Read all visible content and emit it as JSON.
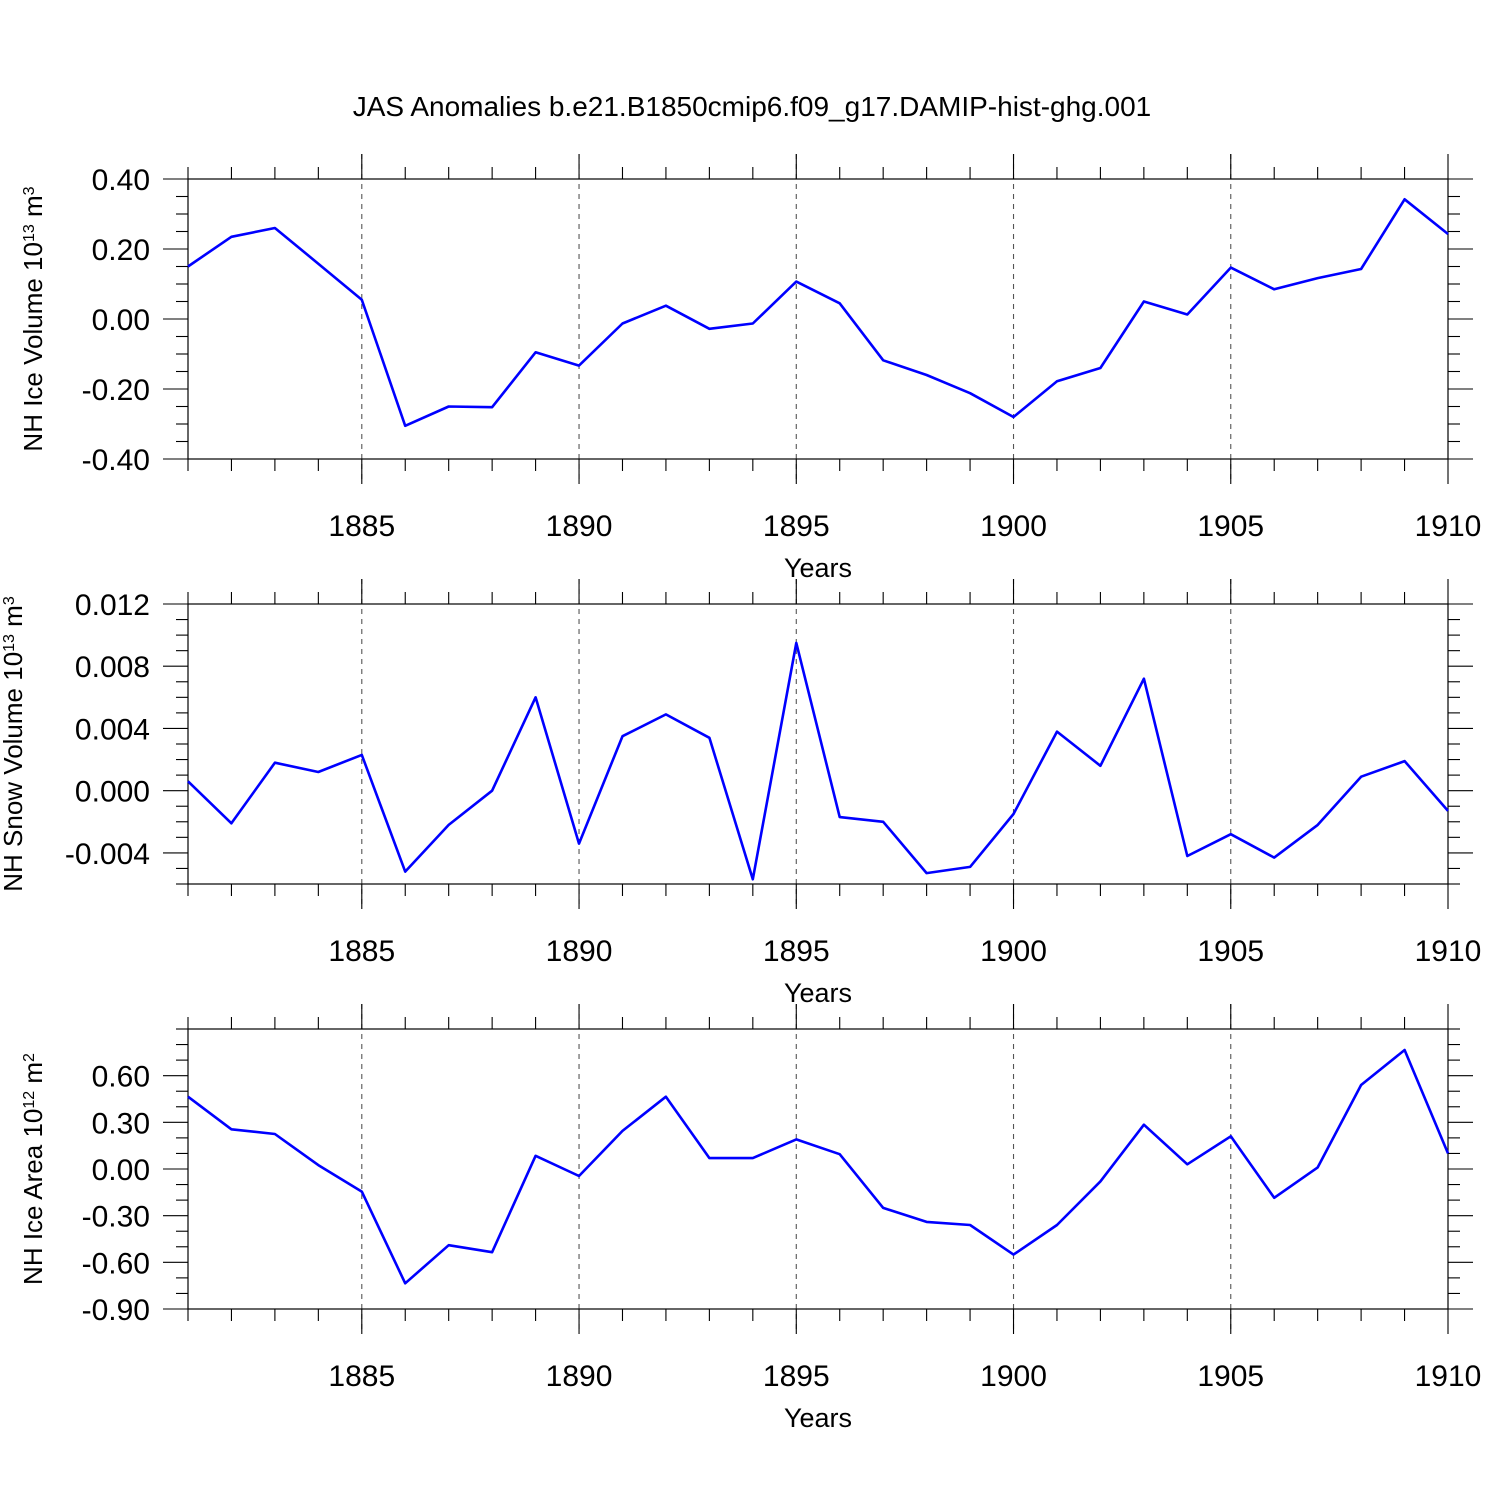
{
  "title": "JAS Anomalies b.e21.B1850cmip6.f09_g17.DAMIP-hist-ghg.001",
  "chart_data": [
    {
      "type": "line",
      "title": "JAS Anomalies b.e21.B1850cmip6.f09_g17.DAMIP-hist-ghg.001",
      "xlabel": "Years",
      "ylabel_text": "NH Ice Volume 10",
      "ylabel_exp": "13",
      "ylabel_unit": " m",
      "ylabel_unit_exp": "3",
      "xlim": [
        1881,
        1910
      ],
      "ylim": [
        -0.4,
        0.4
      ],
      "xticks": [
        1885,
        1890,
        1895,
        1900,
        1905,
        1910
      ],
      "xtick_labels": [
        "1885",
        "1890",
        "1895",
        "1900",
        "1905",
        "1910"
      ],
      "yticks": [
        -0.4,
        -0.2,
        0.0,
        0.2,
        0.4
      ],
      "ytick_labels": [
        "-0.40",
        "-0.20",
        "0.00",
        "0.20",
        "0.40"
      ],
      "yminor_step": 0.05,
      "grid": "vertical dashed at major x ticks",
      "series": [
        {
          "name": "NH Ice Volume",
          "color": "#0000ff",
          "x": [
            1881,
            1882,
            1883,
            1884,
            1885,
            1886,
            1887,
            1888,
            1889,
            1890,
            1891,
            1892,
            1893,
            1894,
            1895,
            1896,
            1897,
            1898,
            1899,
            1900,
            1901,
            1902,
            1903,
            1904,
            1905,
            1906,
            1907,
            1908,
            1909,
            1910
          ],
          "values": [
            0.15,
            0.235,
            0.26,
            0.158,
            0.055,
            -0.305,
            -0.25,
            -0.252,
            -0.095,
            -0.133,
            -0.013,
            0.038,
            -0.028,
            -0.013,
            0.107,
            0.045,
            -0.118,
            -0.16,
            -0.212,
            -0.28,
            -0.178,
            -0.14,
            0.05,
            0.013,
            0.147,
            0.085,
            0.117,
            0.143,
            0.342,
            0.243
          ]
        }
      ]
    },
    {
      "type": "line",
      "title": "",
      "xlabel": "Years",
      "ylabel_text": "NH Snow Volume 10",
      "ylabel_exp": "13",
      "ylabel_unit": " m",
      "ylabel_unit_exp": "3",
      "xlim": [
        1881,
        1910
      ],
      "ylim": [
        -0.006,
        0.012
      ],
      "xticks": [
        1885,
        1890,
        1895,
        1900,
        1905,
        1910
      ],
      "xtick_labels": [
        "1885",
        "1890",
        "1895",
        "1900",
        "1905",
        "1910"
      ],
      "yticks": [
        -0.004,
        0.0,
        0.004,
        0.008,
        0.012
      ],
      "ytick_labels": [
        "-0.004",
        "0.000",
        "0.004",
        "0.008",
        "0.012"
      ],
      "yminor_step": 0.001,
      "grid": "vertical dashed at major x ticks",
      "series": [
        {
          "name": "NH Snow Volume",
          "color": "#0000ff",
          "x": [
            1881,
            1882,
            1883,
            1884,
            1885,
            1886,
            1887,
            1888,
            1889,
            1890,
            1891,
            1892,
            1893,
            1894,
            1895,
            1896,
            1897,
            1898,
            1899,
            1900,
            1901,
            1902,
            1903,
            1904,
            1905,
            1906,
            1907,
            1908,
            1909,
            1910
          ],
          "values": [
            0.0006,
            -0.0021,
            0.0018,
            0.0012,
            0.0023,
            -0.0052,
            -0.0022,
            0.0,
            0.006,
            -0.0034,
            0.0035,
            0.0049,
            0.0034,
            -0.0057,
            0.0095,
            -0.0017,
            -0.002,
            -0.0053,
            -0.0049,
            -0.0015,
            0.0038,
            0.0016,
            0.0072,
            -0.0042,
            -0.0028,
            -0.0043,
            -0.0022,
            0.0009,
            0.0019,
            -0.0013
          ]
        }
      ]
    },
    {
      "type": "line",
      "title": "",
      "xlabel": "Years",
      "ylabel_text": "NH Ice Area 10",
      "ylabel_exp": "12",
      "ylabel_unit": " m",
      "ylabel_unit_exp": "2",
      "xlim": [
        1881,
        1910
      ],
      "ylim": [
        -0.9,
        0.9
      ],
      "xticks": [
        1885,
        1890,
        1895,
        1900,
        1905,
        1910
      ],
      "xtick_labels": [
        "1885",
        "1890",
        "1895",
        "1900",
        "1905",
        "1910"
      ],
      "yticks": [
        -0.9,
        -0.6,
        -0.3,
        0.0,
        0.3,
        0.6
      ],
      "ytick_labels": [
        "-0.90",
        "-0.60",
        "-0.30",
        "0.00",
        "0.30",
        "0.60"
      ],
      "yminor_step": 0.1,
      "grid": "vertical dashed at major x ticks",
      "series": [
        {
          "name": "NH Ice Area",
          "color": "#0000ff",
          "x": [
            1881,
            1882,
            1883,
            1884,
            1885,
            1886,
            1887,
            1888,
            1889,
            1890,
            1891,
            1892,
            1893,
            1894,
            1895,
            1896,
            1897,
            1898,
            1899,
            1900,
            1901,
            1902,
            1903,
            1904,
            1905,
            1906,
            1907,
            1908,
            1909,
            1910
          ],
          "values": [
            0.465,
            0.255,
            0.225,
            0.025,
            -0.145,
            -0.735,
            -0.49,
            -0.535,
            0.085,
            -0.045,
            0.245,
            0.465,
            0.07,
            0.07,
            0.19,
            0.095,
            -0.25,
            -0.34,
            -0.36,
            -0.55,
            -0.36,
            -0.08,
            0.285,
            0.03,
            0.21,
            -0.185,
            0.01,
            0.54,
            0.765,
            0.1
          ]
        }
      ]
    }
  ]
}
